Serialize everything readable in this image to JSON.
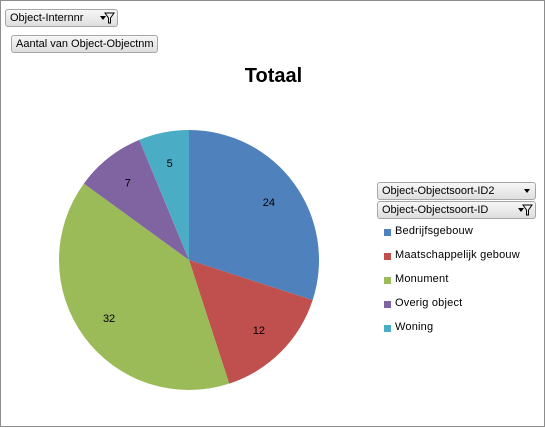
{
  "filters": {
    "report_filter": "Object-Internnr",
    "values_field": "Aantal van Object-Objectnm",
    "legend_field_1": "Object-Objectsoort-ID2",
    "legend_field_2": "Object-Objectsoort-ID"
  },
  "chart_data": {
    "type": "pie",
    "title": "Totaal",
    "categories": [
      "Bedrijfsgebouw",
      "Maatschappelijk gebouw",
      "Monument",
      "Overig object",
      "Woning"
    ],
    "values": [
      24,
      12,
      32,
      7,
      5
    ],
    "colors": [
      "#4f81bd",
      "#c0504d",
      "#9bbb59",
      "#8064a2",
      "#4bacc6"
    ],
    "legend": "right",
    "data_labels": true
  }
}
